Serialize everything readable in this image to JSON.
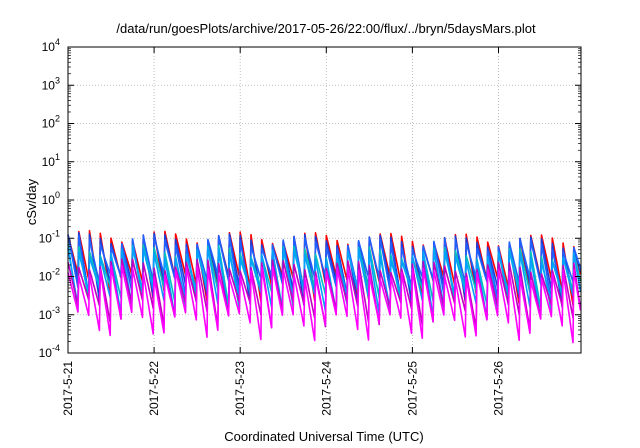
{
  "chart_data": {
    "type": "line",
    "title": "/data/run/goesPlots/archive/2017-05-26/22:00/flux/../bryn/5daysMars.plot",
    "xlabel": "Coordinated Universal Time (UTC)",
    "ylabel": "cSv/day",
    "yscale": "log",
    "ylim": [
      0.0001,
      10000
    ],
    "y_ticks": [
      {
        "base": "10",
        "exp": "-4",
        "value": 0.0001
      },
      {
        "base": "10",
        "exp": "-3",
        "value": 0.001
      },
      {
        "base": "10",
        "exp": "-2",
        "value": 0.01
      },
      {
        "base": "10",
        "exp": "-1",
        "value": 0.1
      },
      {
        "base": "10",
        "exp": "0",
        "value": 1
      },
      {
        "base": "10",
        "exp": "1",
        "value": 10
      },
      {
        "base": "10",
        "exp": "2",
        "value": 100
      },
      {
        "base": "10",
        "exp": "3",
        "value": 1000
      },
      {
        "base": "10",
        "exp": "4",
        "value": 10000
      }
    ],
    "xlim": [
      "2017-05-21T00:00",
      "2017-05-26T23:00"
    ],
    "x_ticks": [
      "2017-5-21",
      "2017-5-22",
      "2017-5-23",
      "2017-5-24",
      "2017-5-25",
      "2017-5-26"
    ],
    "grid": true,
    "series_envelope": {
      "cycle_hours": 3,
      "peak_max": 0.16,
      "peak_min": 0.085,
      "trough_max": 0.003,
      "trough_min": 0.0008
    },
    "series": [
      {
        "color": "#ff0000",
        "peak": 0.16,
        "trough": 0.012
      },
      {
        "color": "#1a3fd9",
        "peak": 0.14,
        "trough": 0.01
      },
      {
        "color": "#2060ff",
        "peak": 0.12,
        "trough": 0.012
      },
      {
        "color": "#00c0c0",
        "peak": 0.07,
        "trough": 0.006
      },
      {
        "color": "#00a0ff",
        "peak": 0.06,
        "trough": 0.005
      },
      {
        "color": "#c000c0",
        "peak": 0.03,
        "trough": 0.0025
      },
      {
        "color": "#ff00ff",
        "peak": 0.02,
        "trough": 0.0012
      }
    ]
  }
}
